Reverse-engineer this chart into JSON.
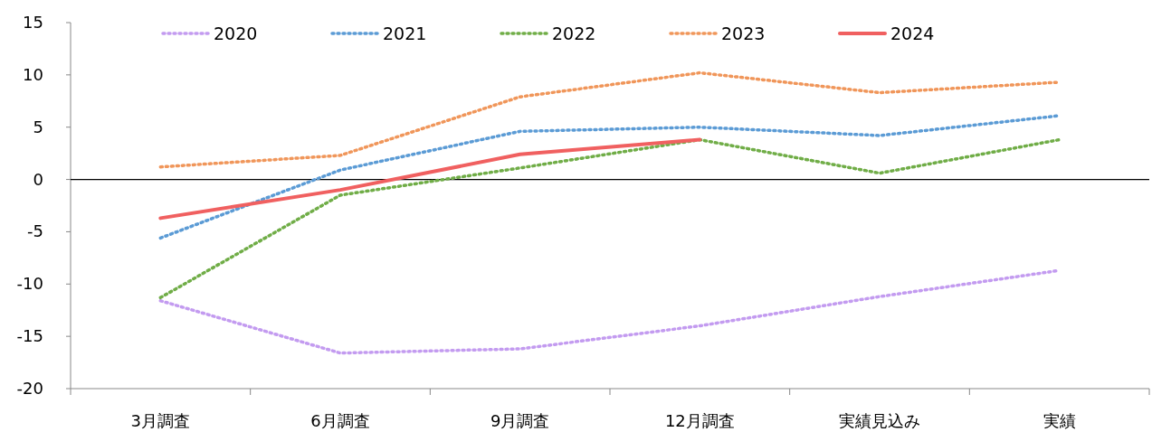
{
  "chart_data": {
    "type": "line",
    "categories": [
      "3月調査",
      "6月調査",
      "9月調査",
      "12月調査",
      "実績見込み",
      "実績"
    ],
    "series": [
      {
        "name": "2020",
        "color": "#c39bf0",
        "line_style": "dotted",
        "values": [
          -11.6,
          -16.6,
          -16.2,
          -14.0,
          -11.2,
          -8.7
        ]
      },
      {
        "name": "2021",
        "color": "#5b9bd5",
        "line_style": "dotted",
        "values": [
          -5.6,
          0.9,
          4.6,
          5.0,
          4.2,
          6.1
        ]
      },
      {
        "name": "2022",
        "color": "#70ad47",
        "line_style": "dotted",
        "values": [
          -11.3,
          -1.5,
          1.1,
          3.8,
          0.6,
          3.8
        ]
      },
      {
        "name": "2023",
        "color": "#f0965a",
        "line_style": "dotted",
        "values": [
          1.2,
          2.3,
          7.9,
          10.2,
          8.3,
          9.3
        ]
      },
      {
        "name": "2024",
        "color": "#f06060",
        "line_style": "solid",
        "values": [
          -3.7,
          -1.0,
          2.4,
          3.8,
          null,
          null
        ]
      }
    ],
    "ylim": [
      -20,
      15
    ],
    "yticks": [
      -20,
      -15,
      -10,
      -5,
      0,
      5,
      10,
      15
    ],
    "ref_lines": [
      {
        "axis": "y",
        "value": 0,
        "color": "#000000"
      }
    ],
    "grid": false,
    "legend": "top",
    "marker": "none"
  }
}
